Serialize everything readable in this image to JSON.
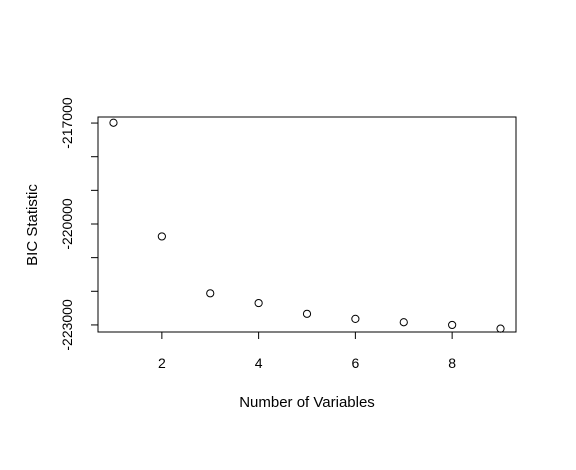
{
  "chart_data": {
    "type": "scatter",
    "title": "",
    "xlabel": "Number of Variables",
    "ylabel": "BIC Statistic",
    "x": [
      1,
      2,
      3,
      4,
      5,
      6,
      7,
      8,
      9
    ],
    "y": [
      -216990,
      -220370,
      -222060,
      -222350,
      -222670,
      -222820,
      -222920,
      -223000,
      -223110
    ],
    "xlim": [
      0.68,
      9.32
    ],
    "ylim": [
      -223210,
      -216820
    ],
    "xticks": [
      2,
      4,
      6,
      8
    ],
    "xtick_labels": [
      "2",
      "4",
      "6",
      "8"
    ],
    "yticks": [
      -217000,
      -218000,
      -219000,
      -220000,
      -221000,
      -222000,
      -223000
    ],
    "ytick_labels": [
      "-217000",
      "",
      "",
      "-220000",
      "",
      "",
      "-223000"
    ],
    "grid": false,
    "legend": "none"
  }
}
